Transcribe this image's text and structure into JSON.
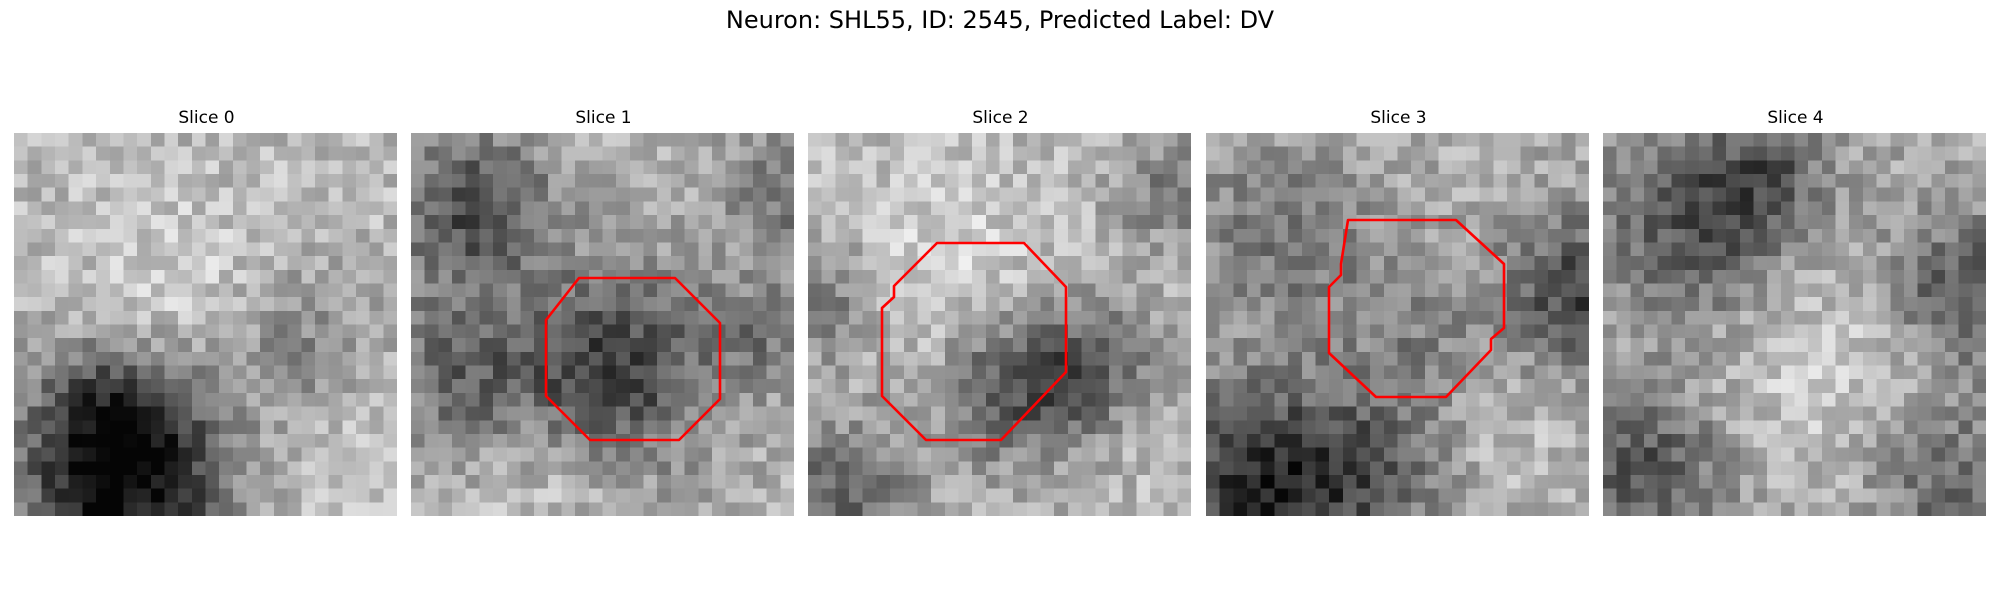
{
  "figure": {
    "title": "Neuron: SHL55, ID: 2545, Predicted Label: DV"
  },
  "colors": {
    "roi_outline": "#ff0000",
    "background": "#ffffff",
    "colormap": "gray"
  },
  "image_grid": {
    "pixels_per_side": 28
  },
  "slices": [
    {
      "title": "Slice 0",
      "has_roi": false
    },
    {
      "title": "Slice 1",
      "has_roi": true
    },
    {
      "title": "Slice 2",
      "has_roi": true
    },
    {
      "title": "Slice 3",
      "has_roi": true
    },
    {
      "title": "Slice 4",
      "has_roi": false
    }
  ]
}
